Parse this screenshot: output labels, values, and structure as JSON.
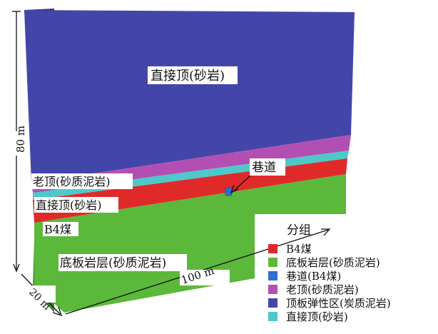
{
  "labels": {
    "roof_main": "直接顶(砂岩)",
    "old_roof": "老顶(砂质泥岩)",
    "immediate_roof": "直接顶(砂岩)",
    "coal_seam": "B4煤",
    "floor": "底板岩层(砂质泥岩)",
    "tunnel": "巷道"
  },
  "dimensions": {
    "height": "80 m",
    "length": "100 m",
    "width": "20 m"
  },
  "legend": {
    "title": "分组",
    "items": [
      {
        "label": "B4煤",
        "color": "#e02a2a"
      },
      {
        "label": "底板岩层(砂质泥岩)",
        "color": "#5cb83a"
      },
      {
        "label": "巷道(B4煤)",
        "color": "#2f6fd0"
      },
      {
        "label": "老顶(砂质泥岩)",
        "color": "#b34fb3"
      },
      {
        "label": "顶板弹性区(炭质泥岩)",
        "color": "#4346a8"
      },
      {
        "label": "直接顶(砂岩)",
        "color": "#4ec9c9"
      }
    ]
  }
}
